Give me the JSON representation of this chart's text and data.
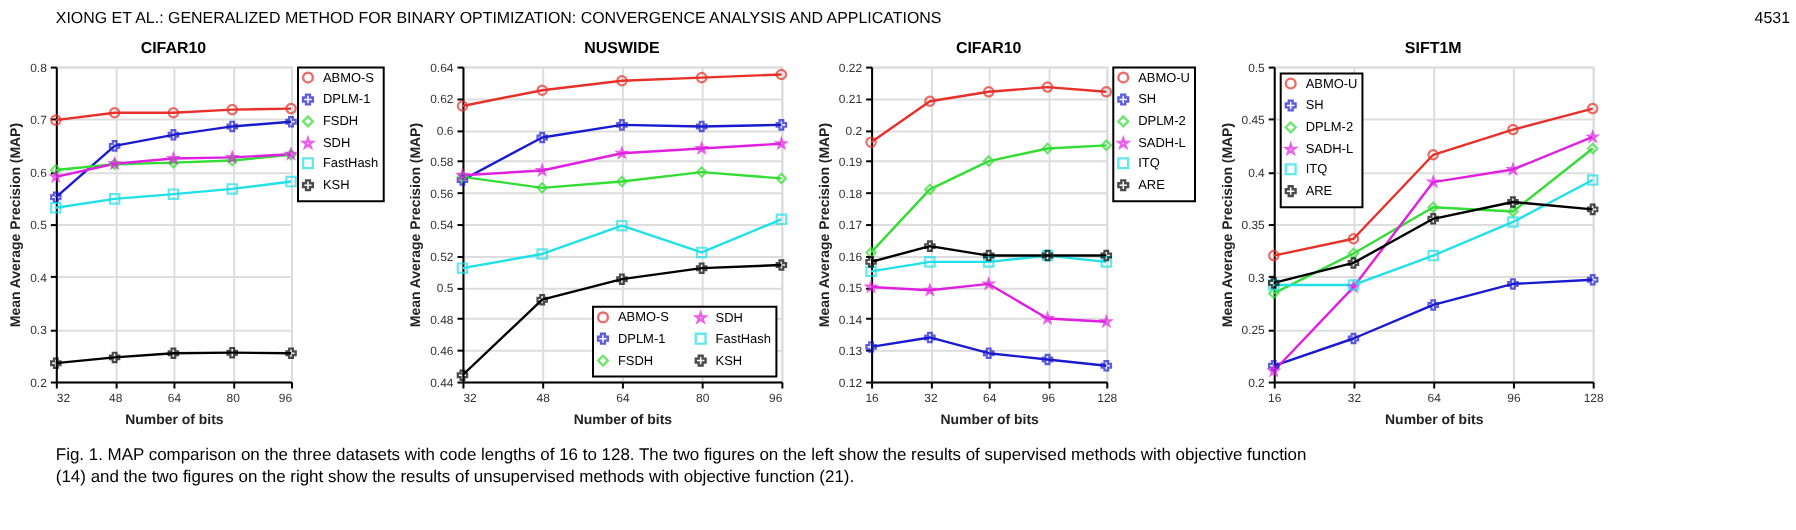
{
  "chart_data": [
    {
      "type": "line",
      "title": "CIFAR10",
      "xlabel": "Number of bits",
      "ylabel": "Mean Average Precision (MAP)",
      "x": [
        32,
        48,
        64,
        80,
        96
      ],
      "xlim": [
        32,
        96
      ],
      "xticks": [
        32,
        48,
        64,
        80,
        96
      ],
      "ylim": [
        0.2,
        0.8
      ],
      "yticks": [
        0.2,
        0.3,
        0.4,
        0.5,
        0.6,
        0.7,
        0.8
      ],
      "grid": true,
      "legend": "right",
      "annotations": [
        "XIONG ET AL.: GENERALIZED METHOD FOR BINARY OPTIMIZATION: CONVERGENCE ANALYSIS AND APPLICATIONS",
        "4531",
        "Fig. 1. MAP comparison on the three datasets with code lengths of 16 to 128. The two figures on the left show the results of supervised methods with objective function (14) and the two figures on the right show the results of unsupervised methods with objective function (21)."
      ],
      "series": [
        {
          "name": "ABMO-S",
          "color": "#e8302a",
          "marker": "circle",
          "values": [
            0.698,
            0.712,
            0.712,
            0.718,
            0.72
          ]
        },
        {
          "name": "DPLM-1",
          "color": "#1a1ad0",
          "marker": "cross",
          "values": [
            0.551,
            0.649,
            0.67,
            0.686,
            0.695
          ]
        },
        {
          "name": "FSDH",
          "color": "#33dd33",
          "marker": "diamond",
          "values": [
            0.603,
            0.614,
            0.617,
            0.621,
            0.632
          ]
        },
        {
          "name": "SDH",
          "color": "#e020e0",
          "marker": "star",
          "values": [
            0.59,
            0.615,
            0.625,
            0.627,
            0.633
          ]
        },
        {
          "name": "FastHash",
          "color": "#20e0e8",
          "marker": "square",
          "values": [
            0.531,
            0.548,
            0.557,
            0.567,
            0.581
          ]
        },
        {
          "name": "KSH",
          "color": "#000000",
          "marker": "cross",
          "values": [
            0.235,
            0.246,
            0.254,
            0.255,
            0.254
          ]
        }
      ]
    },
    {
      "type": "line",
      "title": "NUSWIDE",
      "xlabel": "Number of bits",
      "ylabel": "Mean Average Precision (MAP)",
      "x": [
        32,
        48,
        64,
        80,
        96
      ],
      "xlim": [
        32,
        96
      ],
      "xticks": [
        32,
        48,
        64,
        80,
        96
      ],
      "ylim": [
        0.44,
        0.64
      ],
      "yticks": [
        0.44,
        0.46,
        0.48,
        0.5,
        0.52,
        0.54,
        0.56,
        0.58,
        0.6,
        0.62,
        0.64
      ],
      "grid": true,
      "legend": "bottom right",
      "series": [
        {
          "name": "ABMO-S",
          "color": "#e8302a",
          "marker": "circle",
          "values": [
            0.615,
            0.625,
            0.631,
            0.633,
            0.635
          ]
        },
        {
          "name": "DPLM-1",
          "color": "#1a1ad0",
          "marker": "cross",
          "values": [
            0.568,
            0.595,
            0.603,
            0.602,
            0.603
          ]
        },
        {
          "name": "FSDH",
          "color": "#33dd33",
          "marker": "diamond",
          "values": [
            0.57,
            0.563,
            0.567,
            0.573,
            0.569
          ]
        },
        {
          "name": "SDH",
          "color": "#e020e0",
          "marker": "star",
          "values": [
            0.571,
            0.574,
            0.585,
            0.588,
            0.591
          ]
        },
        {
          "name": "FastHash",
          "color": "#20e0e8",
          "marker": "square",
          "values": [
            0.512,
            0.521,
            0.539,
            0.522,
            0.543
          ]
        },
        {
          "name": "KSH",
          "color": "#000000",
          "marker": "cross",
          "values": [
            0.444,
            0.492,
            0.505,
            0.512,
            0.514
          ]
        }
      ]
    },
    {
      "type": "line",
      "title": "CIFAR10",
      "xlabel": "Number of bits",
      "ylabel": "Mean Average Precision (MAP)",
      "categories": [
        "16",
        "32",
        "64",
        "96",
        "128"
      ],
      "ylim": [
        0.12,
        0.22
      ],
      "yticks": [
        0.12,
        0.13,
        0.14,
        0.15,
        0.16,
        0.17,
        0.18,
        0.19,
        0.2,
        0.21,
        0.22
      ],
      "grid": true,
      "legend": "right",
      "series": [
        {
          "name": "ABMO-U",
          "color": "#e8302a",
          "marker": "circle",
          "values": [
            0.196,
            0.209,
            0.212,
            0.2135,
            0.212
          ]
        },
        {
          "name": "SH",
          "color": "#1a1ad0",
          "marker": "cross",
          "values": [
            0.131,
            0.134,
            0.129,
            0.127,
            0.125
          ]
        },
        {
          "name": "DPLM-2",
          "color": "#33dd33",
          "marker": "diamond",
          "values": [
            0.161,
            0.181,
            0.19,
            0.194,
            0.195
          ]
        },
        {
          "name": "SADH-L",
          "color": "#e020e0",
          "marker": "star",
          "values": [
            0.15,
            0.149,
            0.151,
            0.14,
            0.139
          ]
        },
        {
          "name": "ITQ",
          "color": "#20e0e8",
          "marker": "square",
          "values": [
            0.155,
            0.158,
            0.158,
            0.16,
            0.158
          ]
        },
        {
          "name": "ARE",
          "color": "#000000",
          "marker": "cross",
          "values": [
            0.158,
            0.163,
            0.16,
            0.16,
            0.16
          ]
        }
      ]
    },
    {
      "type": "line",
      "title": "SIFT1M",
      "xlabel": "Number of bits",
      "ylabel": "Mean Average Precision (MAP)",
      "categories": [
        "16",
        "32",
        "64",
        "96",
        "128"
      ],
      "ylim": [
        0.2,
        0.5
      ],
      "yticks": [
        0.2,
        0.25,
        0.3,
        0.35,
        0.4,
        0.45,
        0.5
      ],
      "grid": true,
      "legend": "top left",
      "series": [
        {
          "name": "ABMO-U",
          "color": "#e8302a",
          "marker": "circle",
          "values": [
            0.32,
            0.336,
            0.416,
            0.44,
            0.46
          ]
        },
        {
          "name": "SH",
          "color": "#1a1ad0",
          "marker": "cross",
          "values": [
            0.215,
            0.241,
            0.273,
            0.293,
            0.297
          ]
        },
        {
          "name": "DPLM-2",
          "color": "#33dd33",
          "marker": "diamond",
          "values": [
            0.284,
            0.322,
            0.366,
            0.362,
            0.422
          ]
        },
        {
          "name": "SADH-L",
          "color": "#e020e0",
          "marker": "star",
          "values": [
            0.21,
            0.29,
            0.39,
            0.402,
            0.433
          ]
        },
        {
          "name": "ITQ",
          "color": "#20e0e8",
          "marker": "square",
          "values": [
            0.292,
            0.292,
            0.32,
            0.352,
            0.392
          ]
        },
        {
          "name": "ARE",
          "color": "#000000",
          "marker": "cross",
          "values": [
            0.294,
            0.313,
            0.355,
            0.371,
            0.364
          ]
        }
      ]
    }
  ]
}
